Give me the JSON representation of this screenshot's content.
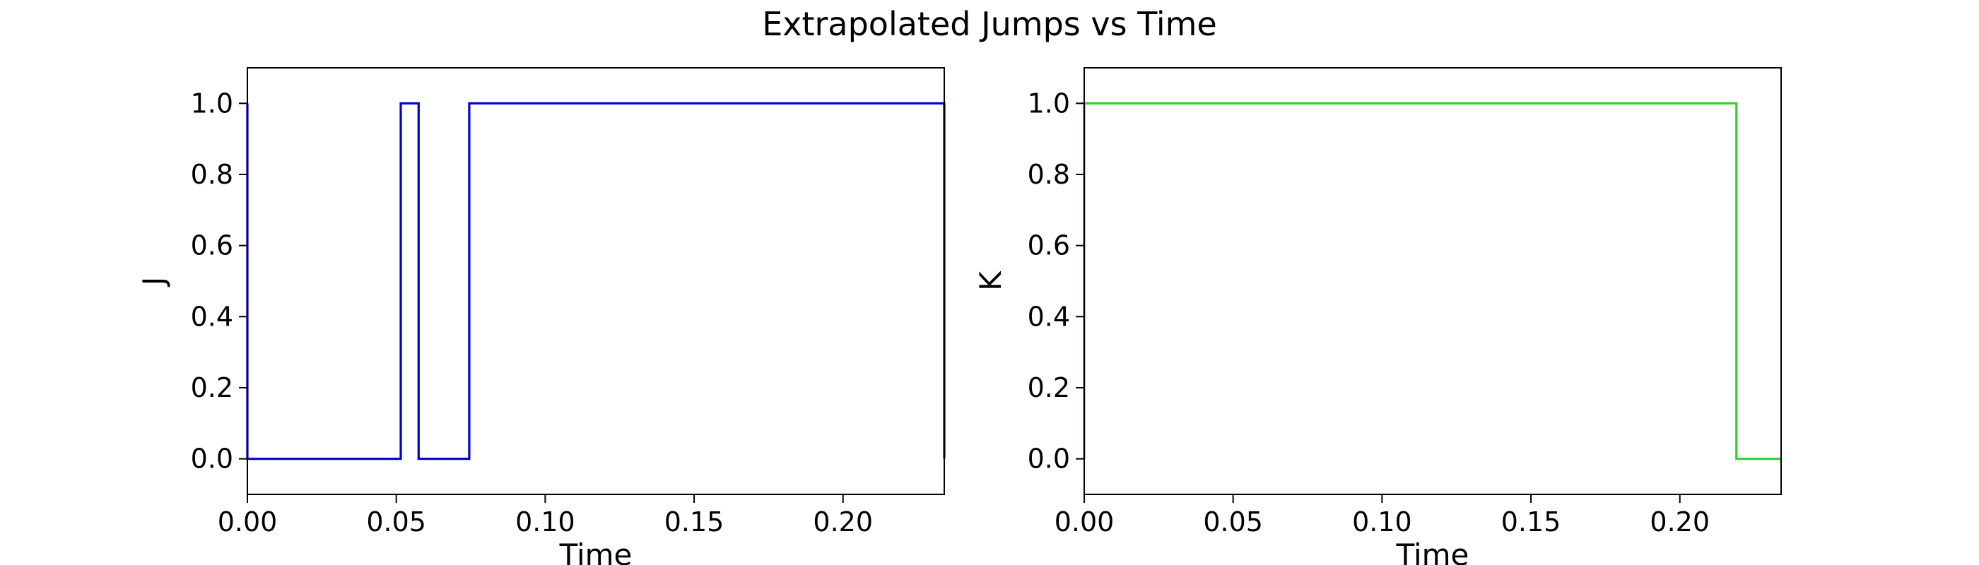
{
  "figure": {
    "title": "Extrapolated Jumps vs Time"
  },
  "chart_data": [
    {
      "type": "line",
      "step": "post",
      "xlabel": "Time",
      "ylabel": "J",
      "xlim": [
        0,
        0.234
      ],
      "ylim": [
        -0.1,
        1.1
      ],
      "xticks": [
        "0.00",
        "0.05",
        "0.10",
        "0.15",
        "0.20"
      ],
      "yticks": [
        "0.0",
        "0.2",
        "0.4",
        "0.6",
        "0.8",
        "1.0"
      ],
      "color": "#0000cc",
      "x": [
        0.0,
        0.0,
        0.0515,
        0.0575,
        0.0745,
        0.234,
        0.234
      ],
      "y": [
        1,
        0,
        1,
        0,
        1,
        1,
        0
      ]
    },
    {
      "type": "line",
      "step": "post",
      "xlabel": "Time",
      "ylabel": "K",
      "xlim": [
        0,
        0.234
      ],
      "ylim": [
        -0.1,
        1.1
      ],
      "xticks": [
        "0.00",
        "0.05",
        "0.10",
        "0.15",
        "0.20"
      ],
      "yticks": [
        "0.0",
        "0.2",
        "0.4",
        "0.6",
        "0.8",
        "1.0"
      ],
      "color": "#33cc33",
      "x": [
        0.0,
        0.0,
        0.219,
        0.234
      ],
      "y": [
        0,
        1,
        0,
        0
      ]
    }
  ]
}
